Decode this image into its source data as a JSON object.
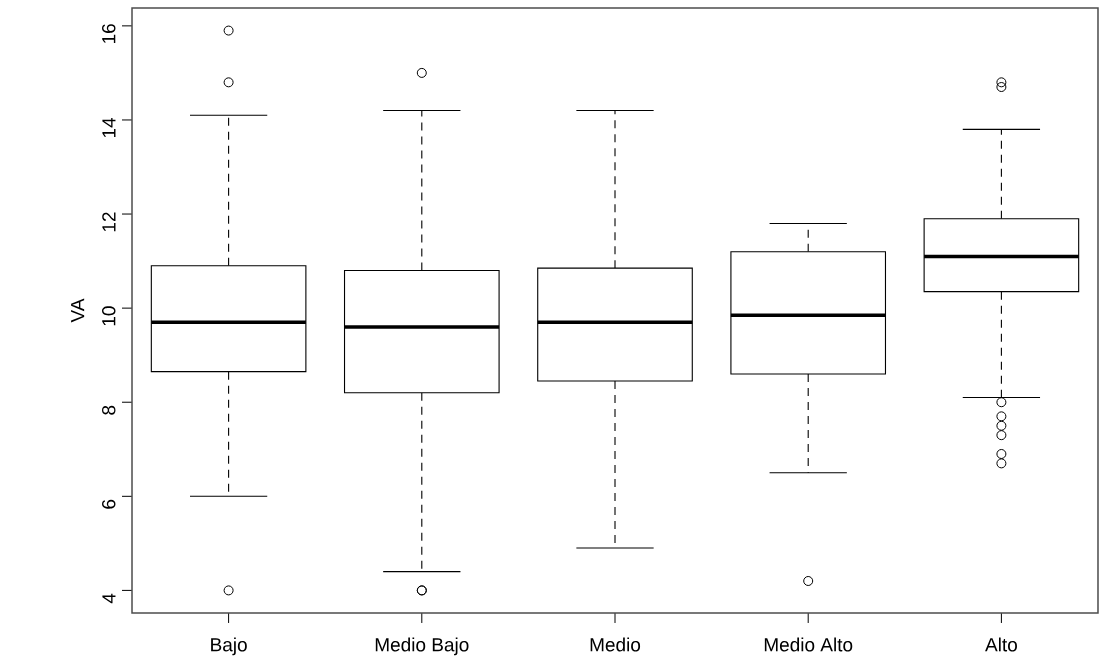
{
  "chart_data": {
    "type": "box",
    "ylabel": "VA",
    "categories": [
      "Bajo",
      "Medio Bajo",
      "Medio",
      "Medio Alto",
      "Alto"
    ],
    "boxes": [
      {
        "low": 6.0,
        "q1": 8.65,
        "median": 9.7,
        "q3": 10.9,
        "high": 14.1,
        "outliers": [
          15.9,
          14.8,
          4.0
        ]
      },
      {
        "low": 4.4,
        "q1": 8.2,
        "median": 9.6,
        "q3": 10.8,
        "high": 14.2,
        "outliers": [
          15.0,
          4.0,
          4.0
        ]
      },
      {
        "low": 4.9,
        "q1": 8.45,
        "median": 9.7,
        "q3": 10.85,
        "high": 14.2
      },
      {
        "low": 6.5,
        "q1": 8.6,
        "median": 9.85,
        "q3": 11.2,
        "high": 11.8,
        "outliers": [
          4.2
        ]
      },
      {
        "low": 8.1,
        "q1": 10.35,
        "median": 11.1,
        "q3": 11.9,
        "high": 13.8,
        "outliers": [
          14.8,
          14.7,
          8.0,
          7.7,
          7.5,
          7.3,
          6.9,
          6.7
        ]
      }
    ],
    "ylim": [
      3.52,
      16.38
    ],
    "yticks": [
      4,
      6,
      8,
      10,
      12,
      14,
      16
    ],
    "marker": "circle",
    "grid": false
  }
}
